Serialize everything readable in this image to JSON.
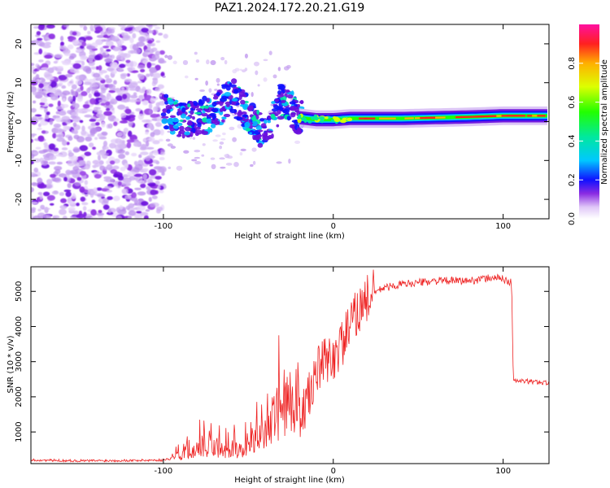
{
  "figure": {
    "title": "PAZ1.2024.172.20.21.G19"
  },
  "chart_data": [
    {
      "type": "heatmap",
      "title": "PAZ1.2024.172.20.21.G19",
      "xlabel": "Height of straight line (km)",
      "ylabel": "Frequency (Hz)",
      "xlim": [
        -178,
        127
      ],
      "ylim": [
        -25,
        25
      ],
      "xticks": [
        -100,
        0,
        100
      ],
      "yticks": [
        -20,
        -10,
        0,
        10,
        20
      ],
      "colorbar": {
        "label": "Normalized spectral amplitude",
        "range": [
          0.0,
          1.0
        ],
        "ticks": [
          "0.0",
          "0.2",
          "0.4",
          "0.6",
          "0.8"
        ],
        "colormap": "gist_ncar-like rainbow"
      },
      "ridge": {
        "x": [
          -100,
          -90,
          -80,
          -70,
          -60,
          -50,
          -40,
          -30,
          -20,
          -10,
          0,
          10,
          20,
          40,
          60,
          80,
          100,
          127
        ],
        "frequency": [
          3,
          0,
          1,
          2,
          7,
          2,
          -4,
          6,
          1,
          0.5,
          0.5,
          0.8,
          0.8,
          0.8,
          1.0,
          1.2,
          1.5,
          1.5
        ]
      }
    },
    {
      "type": "line",
      "xlabel": "Height of straight line (km)",
      "ylabel": "SNR (10 * v/v)",
      "xlim": [
        -178,
        127
      ],
      "ylim": [
        100,
        5700
      ],
      "xticks": [
        -100,
        0,
        100
      ],
      "yticks": [
        1000,
        2000,
        3000,
        4000,
        5000
      ],
      "color": "#ee2222",
      "series": [
        {
          "x": [
            -178,
            -150,
            -120,
            -100,
            -90,
            -85,
            -80,
            -70,
            -60,
            -50,
            -40,
            -35,
            -30,
            -25,
            -20,
            -15,
            -10,
            -5,
            0,
            5,
            10,
            15,
            20,
            25,
            30,
            40,
            60,
            80,
            95,
            100,
            105,
            106,
            110,
            120,
            127
          ],
          "values": [
            200,
            180,
            190,
            200,
            300,
            500,
            600,
            550,
            500,
            650,
            1000,
            1400,
            1800,
            1600,
            1300,
            1900,
            2700,
            3000,
            3100,
            3500,
            4000,
            4500,
            4800,
            5000,
            5100,
            5200,
            5300,
            5300,
            5400,
            5350,
            5250,
            2450,
            2450,
            2420,
            2400
          ]
        }
      ]
    }
  ]
}
